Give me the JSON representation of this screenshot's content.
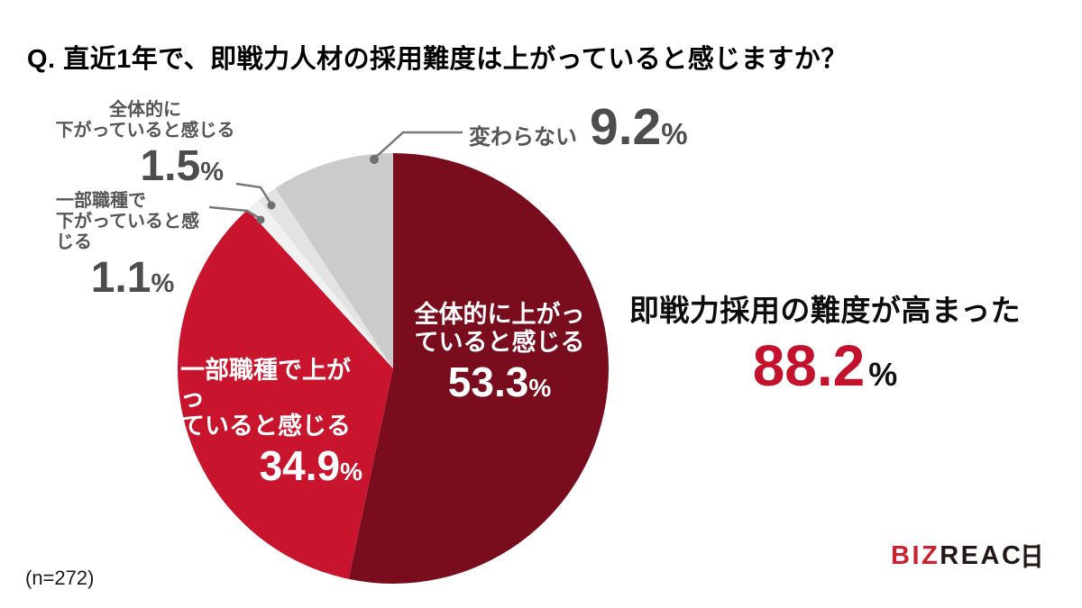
{
  "title": "Q. 直近1年で、即戦力人材の採用難度は上がっていると感じますか？",
  "unit": "%",
  "sample_note": "(n=272)",
  "highlight": {
    "label": "即戦力採用の難度が高まった",
    "value": "88.2"
  },
  "pie_labels": {
    "overall_up": {
      "line1": "全体的に上がっ",
      "line2": "ていると感じる",
      "value": "53.3"
    },
    "partial_up": {
      "line1": "一部職種で上がっ",
      "line2": "ていると感じる",
      "value": "34.9"
    },
    "overall_down": {
      "line1": "全体的に",
      "line2": "下がっていると感じる",
      "value": "1.5"
    },
    "partial_down": {
      "line1": "一部職種で",
      "line2": "下がっていると感じる",
      "value": "1.1"
    },
    "unchanged": {
      "label": "変わらない",
      "value": "9.2"
    }
  },
  "chart_data": {
    "type": "pie",
    "title": "直近1年で、即戦力人材の採用難度は上がっていると感じますか？",
    "n": 272,
    "start_angle_deg": 0,
    "direction": "clockwise",
    "segments": [
      {
        "key": "overall-up",
        "label": "全体的に上がっていると感じる",
        "value": 53.3,
        "color": "#790c1d",
        "text_color": "#ffffff"
      },
      {
        "key": "partial-up",
        "label": "一部職種で上がっていると感じる",
        "value": 34.9,
        "color": "#c8142d",
        "text_color": "#ffffff"
      },
      {
        "key": "partial-down",
        "label": "一部職種で下がっていると感じる",
        "value": 1.1,
        "color": "#f1f1f1",
        "text_color": "#555555"
      },
      {
        "key": "overall-down",
        "label": "全体的に下がっていると感じる",
        "value": 1.5,
        "color": "#e3e3e3",
        "text_color": "#555555"
      },
      {
        "key": "unchanged",
        "label": "変わらない",
        "value": 9.2,
        "color": "#cbcbcb",
        "text_color": "#555555"
      }
    ],
    "annotation": {
      "label": "即戦力採用の難度が高まった",
      "value": 88.2
    }
  },
  "logo": {
    "part1": "BIZ",
    "part2": "REAC"
  },
  "colors": {
    "accent_red": "#c4122d",
    "dark_red": "#790c1d",
    "red": "#c8142d",
    "gray": "#cbcbcb",
    "label_gray": "#555555",
    "number_gray": "#4d4d4d",
    "leader_line": "#787878"
  }
}
